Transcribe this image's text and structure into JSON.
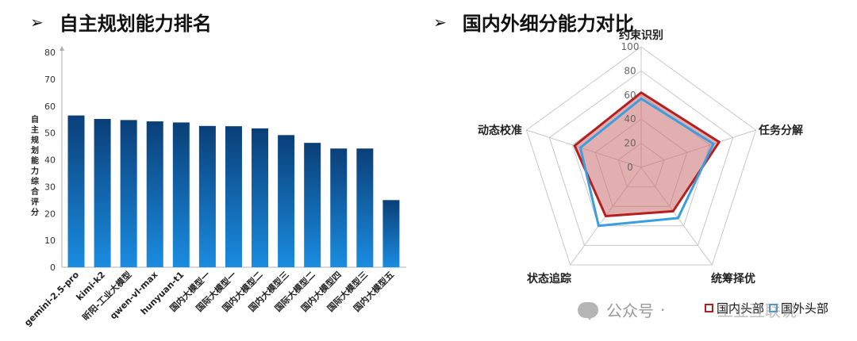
{
  "headings": {
    "left": "自主规划能力排名",
    "right": "国内外细分能力对比"
  },
  "watermark": {
    "text": "公众号",
    "dot": "·",
    "org": "工业互联说"
  },
  "chart_data": [
    {
      "type": "bar",
      "categories": [
        "gemini-2.5-pro",
        "kimi-k2",
        "昕阳-工业大模型",
        "qwen-vl-max",
        "hunyuan-t1",
        "国内大模型一",
        "国际大模型一",
        "国内大模型二",
        "国内大模型三",
        "国际大模型二",
        "国内大模型四",
        "国际大模型三",
        "国内大模型五"
      ],
      "values": [
        56.5,
        55.2,
        54.8,
        54.3,
        53.9,
        52.6,
        52.5,
        51.7,
        49.2,
        46.3,
        44.2,
        44.2,
        25.0
      ],
      "ylabel": "自主规划能力综合评分",
      "ylim": [
        0,
        80
      ],
      "yticks": [
        0,
        10,
        20,
        30,
        40,
        50,
        60,
        70,
        80
      ],
      "bar_color_top": "#0a3f78",
      "bar_color_bottom": "#1a8ce0"
    },
    {
      "type": "radar",
      "axes": [
        "约束识别",
        "任务分解",
        "统筹择优",
        "状态追踪",
        "动态校准"
      ],
      "range": [
        0,
        100
      ],
      "ticks": [
        0,
        20,
        40,
        60,
        80,
        100
      ],
      "series": [
        {
          "name": "国内头部",
          "values": [
            62,
            68,
            45,
            50,
            58
          ],
          "stroke": "#b51f1f",
          "fill": "rgba(200,110,110,0.55)"
        },
        {
          "name": "国外头部",
          "values": [
            57,
            63,
            52,
            60,
            53
          ],
          "stroke": "#3a9ee0",
          "fill": "rgba(200,110,110,0.0)"
        }
      ]
    }
  ]
}
